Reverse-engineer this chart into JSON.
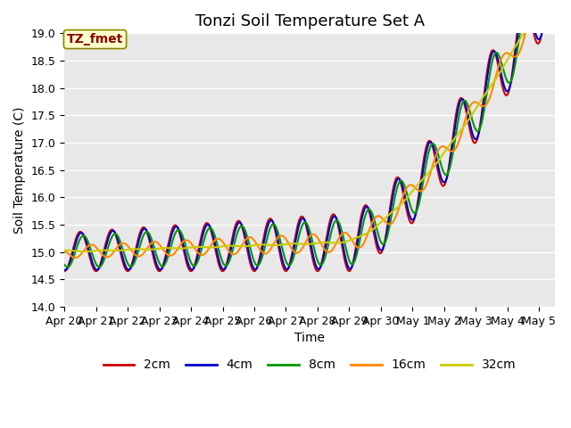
{
  "title": "Tonzi Soil Temperature Set A",
  "xlabel": "Time",
  "ylabel": "Soil Temperature (C)",
  "annotation": "TZ_fmet",
  "ylim": [
    14.0,
    19.0
  ],
  "yticks": [
    14.0,
    14.5,
    15.0,
    15.5,
    16.0,
    16.5,
    17.0,
    17.5,
    18.0,
    18.5,
    19.0
  ],
  "xtick_labels": [
    "Apr 20",
    "Apr 21",
    "Apr 22",
    "Apr 23",
    "Apr 24",
    "Apr 25",
    "Apr 26",
    "Apr 27",
    "Apr 28",
    "Apr 29",
    "Apr 30",
    "May 1",
    "May 2",
    "May 3",
    "May 4",
    "May 5"
  ],
  "line_colors": [
    "#cc0000",
    "#0000cc",
    "#009900",
    "#ff8800",
    "#cccc00"
  ],
  "line_labels": [
    "2cm",
    "4cm",
    "8cm",
    "16cm",
    "32cm"
  ],
  "line_widths": [
    1.5,
    1.5,
    1.5,
    1.5,
    1.5
  ],
  "bg_color": "#e8e8e8",
  "fig_bg": "#ffffff",
  "annotation_bg": "#ffffcc",
  "annotation_text_color": "#880000",
  "annotation_border_color": "#888800",
  "grid_color": "#ffffff",
  "title_fontsize": 13,
  "axis_fontsize": 10,
  "tick_fontsize": 9,
  "legend_fontsize": 10
}
